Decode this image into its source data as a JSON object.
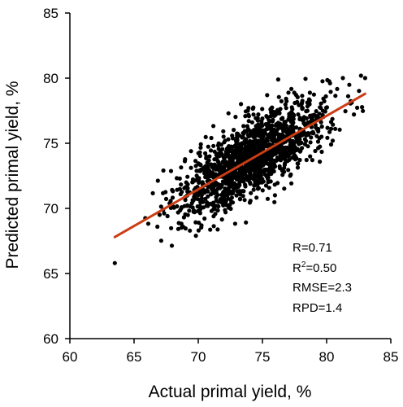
{
  "chart_data": {
    "type": "scatter",
    "title": "",
    "xlabel": "Actual primal yield, %",
    "ylabel": "Predicted primal yield, %",
    "xlim": [
      60,
      85
    ],
    "ylim": [
      60,
      85
    ],
    "xticks": [
      60,
      65,
      70,
      75,
      80,
      85
    ],
    "yticks": [
      60,
      65,
      70,
      75,
      80,
      85
    ],
    "xtick_labels": [
      "60",
      "65",
      "70",
      "75",
      "80",
      "85"
    ],
    "ytick_labels": [
      "60",
      "65",
      "70",
      "75",
      "80",
      "85"
    ],
    "grid": false,
    "point_color": "#000000",
    "point_count": 1500,
    "cluster": {
      "x_mean": 74.3,
      "x_sd": 2.9,
      "x_min": 63.5,
      "x_max": 83.0,
      "slope": 0.56,
      "intercept": 32.4,
      "residual_sd": 1.45,
      "y_min": 65.8,
      "y_max": 81.1
    },
    "trendline": {
      "color": "#cc3d14",
      "x": [
        63.5,
        83.0
      ],
      "y": [
        67.8,
        78.8
      ]
    },
    "annotations": {
      "r": "R=0.71",
      "r2_base": "R",
      "r2_sup": "2",
      "r2_value": "=0.50",
      "rmse": "RMSE=2.3",
      "rpd": "RPD=1.4"
    }
  }
}
